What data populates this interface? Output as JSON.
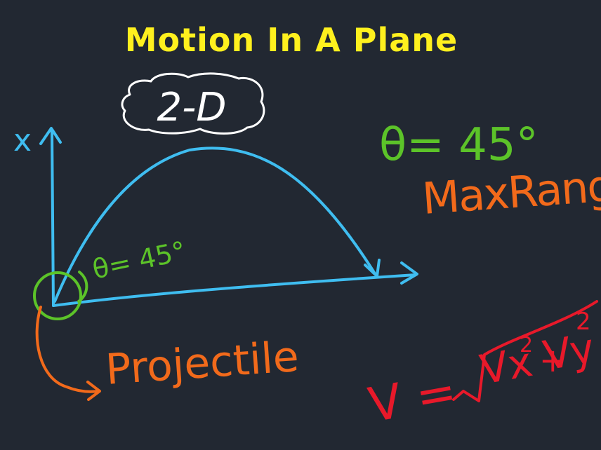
{
  "title": "Motion In A Plane",
  "dimension_label": "2-D",
  "axis_label": "x",
  "angle_near_origin": "θ= 45°",
  "angle_right": "θ= 45°",
  "max_range_label": "MaxRange",
  "origin_label": "Projectile",
  "velocity_formula": {
    "lhs": "V =",
    "term1": "Vx",
    "term1_sup": "2",
    "plus": "+",
    "term2": "Vy",
    "term2_sup": "2"
  },
  "colors": {
    "background": "#222832",
    "title": "#fff01e",
    "axes_and_path": "#3fbdf0",
    "angle": "#5cc329",
    "range": "#f26a1b",
    "formula": "#e8192a",
    "outline": "#ffffff"
  }
}
